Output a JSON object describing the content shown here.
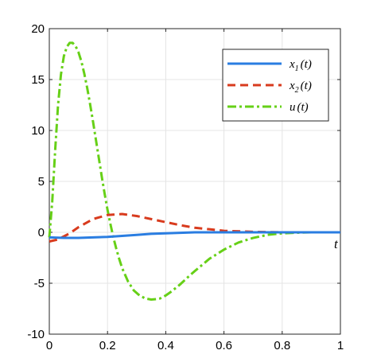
{
  "chart_data": {
    "type": "line",
    "xlabel": "t",
    "ylabel": "",
    "xlim": [
      0,
      1
    ],
    "ylim": [
      -10,
      20
    ],
    "x_ticks": [
      0,
      0.2,
      0.4,
      0.6,
      0.8,
      1
    ],
    "x_tick_labels": [
      "0",
      "0.2",
      "0.4",
      "0.6",
      "0.8",
      "1"
    ],
    "y_ticks": [
      -10,
      -5,
      0,
      5,
      10,
      15,
      20
    ],
    "y_tick_labels": [
      "-10",
      "-5",
      "0",
      "5",
      "10",
      "15",
      "20"
    ],
    "grid": true,
    "legend_position": "top-right",
    "series": [
      {
        "name": "x_1(t)",
        "legend_main": "x",
        "legend_sub": "1",
        "legend_tail": "(t)",
        "color": "#2a7de1",
        "style": "solid",
        "x": [
          0,
          0.05,
          0.1,
          0.15,
          0.2,
          0.25,
          0.3,
          0.35,
          0.4,
          0.45,
          0.5,
          0.6,
          0.7,
          0.8,
          0.9,
          1.0
        ],
        "values": [
          -0.5,
          -0.55,
          -0.55,
          -0.5,
          -0.45,
          -0.35,
          -0.25,
          -0.15,
          -0.1,
          -0.05,
          0,
          0,
          0,
          0,
          0,
          0
        ]
      },
      {
        "name": "x_2(t)",
        "legend_main": "x",
        "legend_sub": "2",
        "legend_tail": "(t)",
        "color": "#d83b1e",
        "style": "dashed",
        "x": [
          0,
          0.03,
          0.07,
          0.1,
          0.15,
          0.2,
          0.25,
          0.3,
          0.35,
          0.4,
          0.45,
          0.5,
          0.55,
          0.6,
          0.7,
          0.8,
          0.9,
          1.0
        ],
        "values": [
          -0.9,
          -0.7,
          -0.1,
          0.5,
          1.3,
          1.7,
          1.8,
          1.6,
          1.3,
          1.0,
          0.7,
          0.45,
          0.3,
          0.15,
          0.05,
          0,
          0,
          0
        ]
      },
      {
        "name": "u(t)",
        "legend_main": "u",
        "legend_sub": "",
        "legend_tail": "(t)",
        "color": "#66d017",
        "style": "dashdot",
        "x": [
          0,
          0.01,
          0.02,
          0.03,
          0.04,
          0.05,
          0.06,
          0.07,
          0.08,
          0.09,
          0.1,
          0.11,
          0.12,
          0.13,
          0.14,
          0.15,
          0.16,
          0.17,
          0.18,
          0.19,
          0.2,
          0.21,
          0.22,
          0.23,
          0.24,
          0.25,
          0.27,
          0.29,
          0.31,
          0.33,
          0.35,
          0.37,
          0.38,
          0.4,
          0.42,
          0.45,
          0.48,
          0.5,
          0.55,
          0.6,
          0.65,
          0.7,
          0.75,
          0.8,
          0.85,
          0.9,
          0.95,
          1.0
        ],
        "values": [
          -0.5,
          3.0,
          8.0,
          12.5,
          15.5,
          17.3,
          18.2,
          18.6,
          18.6,
          18.3,
          17.7,
          16.8,
          15.6,
          14.2,
          12.6,
          10.9,
          9.1,
          7.3,
          5.5,
          3.8,
          2.2,
          0.8,
          -0.5,
          -1.6,
          -2.6,
          -3.5,
          -4.8,
          -5.7,
          -6.2,
          -6.5,
          -6.6,
          -6.55,
          -6.5,
          -6.2,
          -5.8,
          -5.1,
          -4.3,
          -3.8,
          -2.6,
          -1.7,
          -1.0,
          -0.55,
          -0.25,
          -0.1,
          -0.04,
          0,
          0,
          0
        ]
      }
    ]
  }
}
